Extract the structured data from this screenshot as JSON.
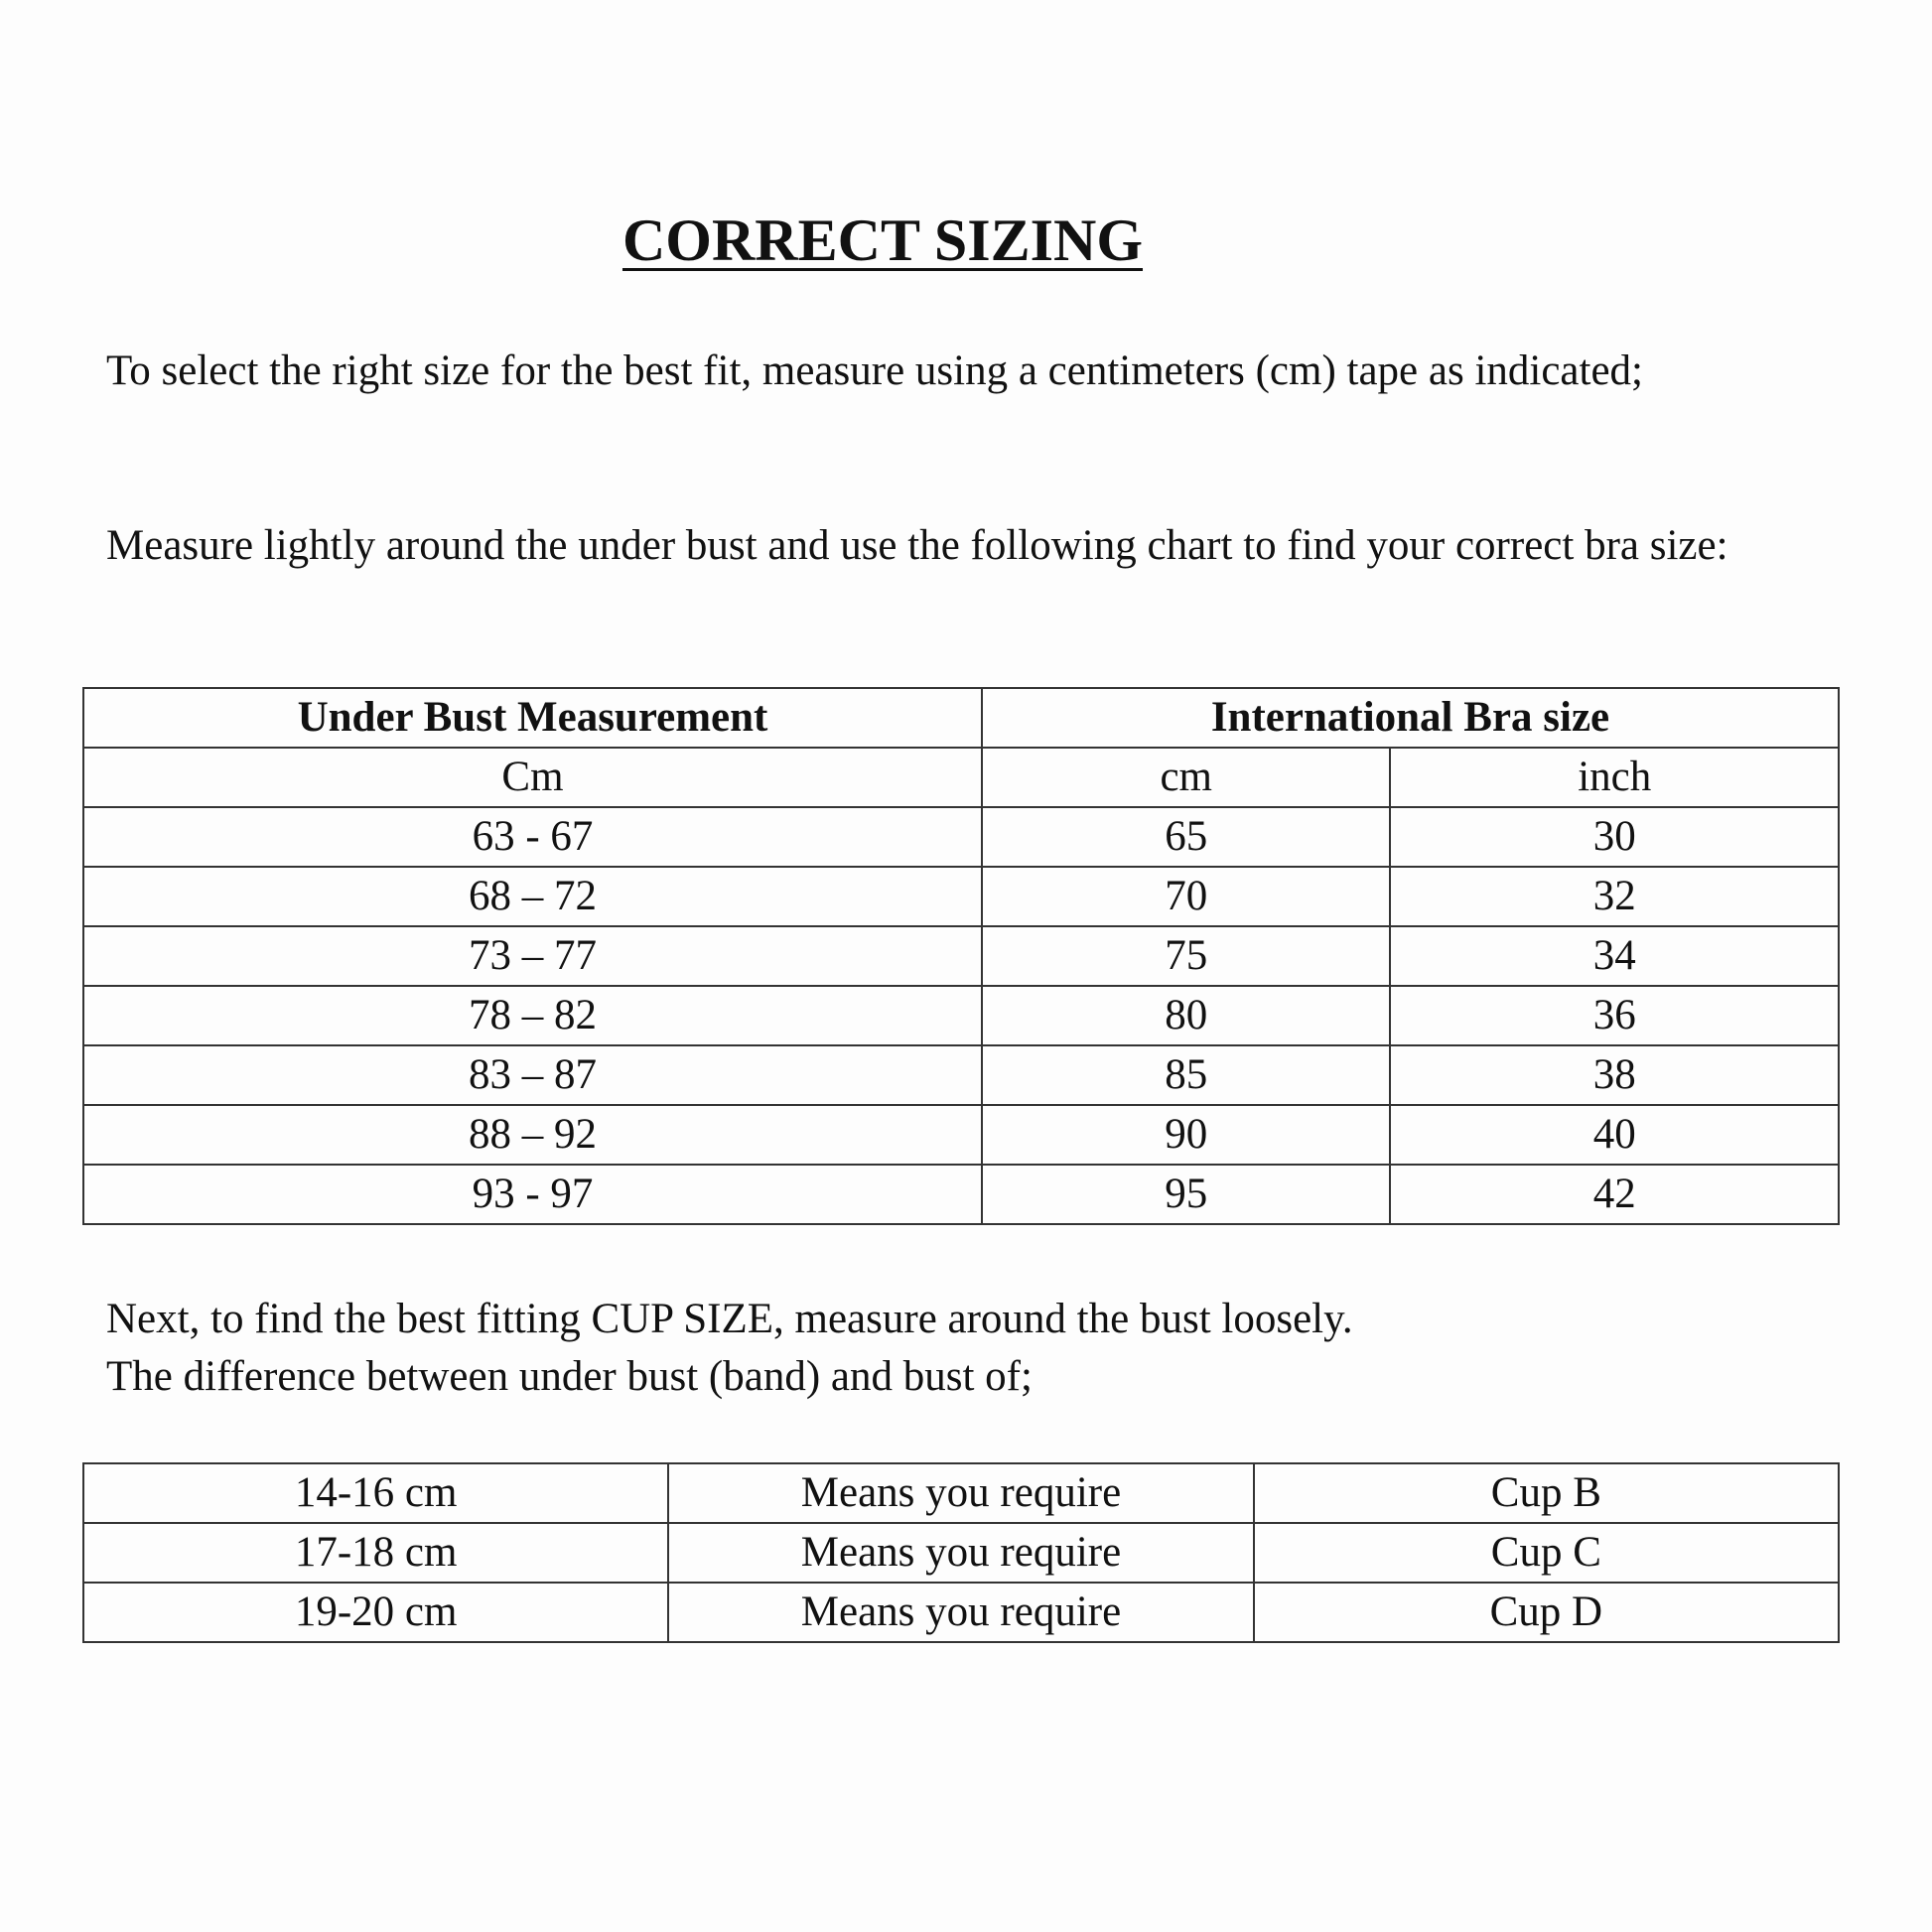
{
  "title": "CORRECT SIZING",
  "intro": "To select the right size for the best fit, measure using a centimeters (cm) tape as indicated;",
  "instruction": "Measure lightly around the under bust and use the following chart to find your correct bra size:",
  "band_table": {
    "header_left": "Under Bust Measurement",
    "header_right": "International Bra size",
    "sub_headers": [
      "Cm",
      "cm",
      "inch"
    ],
    "rows": [
      [
        "63 - 67",
        "65",
        "30"
      ],
      [
        "68 – 72",
        "70",
        "32"
      ],
      [
        "73 – 77",
        "75",
        "34"
      ],
      [
        "78 – 82",
        "80",
        "36"
      ],
      [
        "83 – 87",
        "85",
        "38"
      ],
      [
        "88 – 92",
        "90",
        "40"
      ],
      [
        "93 - 97",
        "95",
        "42"
      ]
    ]
  },
  "cup_line1": "Next, to find the best fitting CUP SIZE, measure around the bust loosely.",
  "cup_line2": "The difference between under bust (band) and bust of;",
  "cup_table": {
    "rows": [
      [
        "14-16 cm",
        "Means you require",
        "Cup B"
      ],
      [
        "17-18 cm",
        "Means you require",
        "Cup C"
      ],
      [
        "19-20 cm",
        "Means you require",
        "Cup D"
      ]
    ]
  }
}
